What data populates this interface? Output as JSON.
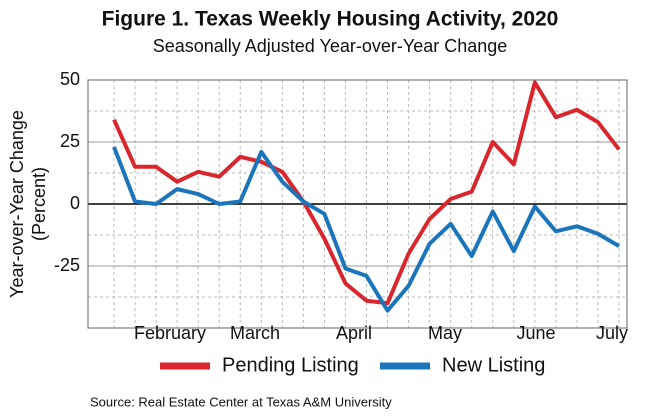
{
  "chart_data": {
    "type": "line",
    "title": "Figure 1. Texas Weekly Housing Activity, 2020",
    "subtitle": "Seasonally Adjusted Year-over-Year Change",
    "y_label_lines": [
      "Year-over-Year Change",
      "(Percent)"
    ],
    "source": "Source: Real Estate Center at Texas A&M University",
    "categories": [
      null,
      null,
      null,
      null,
      null,
      null,
      null,
      null,
      null,
      null,
      null,
      null,
      null,
      null,
      null,
      null,
      null,
      null,
      null,
      null,
      null,
      null,
      null,
      null,
      null
    ],
    "month_labels": [
      "February",
      "March",
      "April",
      "May",
      "June",
      "July"
    ],
    "series": [
      {
        "name": "Pending Listing",
        "color": "#d9262c",
        "values": [
          34,
          15,
          15,
          9,
          13,
          11,
          19,
          17,
          13,
          1,
          -14,
          -32,
          -39,
          -40,
          -20,
          -6,
          2,
          5,
          25,
          16,
          49,
          35,
          38,
          33,
          22
        ]
      },
      {
        "name": "New Listing",
        "color": "#1b75bb",
        "values": [
          23,
          1,
          0,
          6,
          4,
          0,
          1,
          21,
          9,
          1,
          -4,
          -26,
          -29,
          -43,
          -33,
          -16,
          -8,
          -21,
          -3,
          -19,
          -1,
          -11,
          -9,
          -12,
          -17
        ]
      }
    ],
    "ylim": [
      -50,
      50
    ],
    "yticks": [
      50,
      25,
      0,
      -25
    ],
    "minor_gridlines": [
      37.5,
      12.5,
      -12.5,
      -37.5
    ],
    "grid": true,
    "legend": "bottom"
  }
}
